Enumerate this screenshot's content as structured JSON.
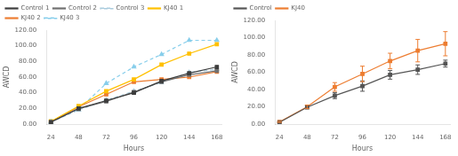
{
  "chart_data": [
    {
      "type": "line",
      "xlabel": "Hours",
      "ylabel": "AWCD",
      "x": [
        24,
        48,
        72,
        96,
        120,
        144,
        168
      ],
      "xlim": [
        20,
        172
      ],
      "xticks": [
        24,
        48,
        72,
        96,
        120,
        144,
        168
      ],
      "ylim": [
        0,
        120
      ],
      "yticks": [
        {
          "value": 0,
          "label": "0.00"
        },
        {
          "value": 20,
          "label": "20.00"
        },
        {
          "value": 40,
          "label": "40.00"
        },
        {
          "value": 60,
          "label": "60.00"
        },
        {
          "value": 80,
          "label": "80.00"
        },
        {
          "value": 100,
          "label": "100.00"
        },
        {
          "value": 120,
          "label": "120.00"
        }
      ],
      "grid": false,
      "legend": "upper left",
      "series": [
        {
          "name": "Control 1",
          "color": "#3d3d3d",
          "marker": "square",
          "line_style": "solid",
          "values": [
            2.5,
            20.0,
            30.0,
            40.0,
            55.0,
            65.0,
            73.0
          ]
        },
        {
          "name": "Control 2",
          "color": "#707070",
          "marker": "square",
          "line_style": "solid",
          "values": [
            2.5,
            19.5,
            29.0,
            41.0,
            54.0,
            63.0,
            68.0
          ]
        },
        {
          "name": "Control 3",
          "color": "#aaccdd",
          "marker": "triangle",
          "line_style": "dashed",
          "values": [
            2.5,
            18.0,
            30.5,
            42.0,
            53.0,
            66.0,
            70.0
          ]
        },
        {
          "name": "KJ40 1",
          "color": "#ffc000",
          "marker": "square",
          "line_style": "solid",
          "values": [
            3.5,
            23.0,
            42.0,
            57.0,
            76.0,
            90.0,
            102.0
          ]
        },
        {
          "name": "KJ40 2",
          "color": "#ed7d31",
          "marker": "square",
          "line_style": "solid",
          "values": [
            3.0,
            22.0,
            38.0,
            54.0,
            57.0,
            60.0,
            67.0
          ]
        },
        {
          "name": "KJ40 3",
          "color": "#87ceeb",
          "marker": "triangle",
          "line_style": "dashed",
          "values": [
            3.0,
            18.5,
            52.0,
            73.0,
            89.0,
            107.0,
            107.0
          ]
        }
      ]
    },
    {
      "type": "line",
      "xlabel": "Hours",
      "ylabel": "AWCD",
      "x": [
        24,
        48,
        72,
        96,
        120,
        144,
        168
      ],
      "xlim": [
        20,
        172
      ],
      "xticks": [
        24,
        48,
        72,
        96,
        120,
        144,
        168
      ],
      "ylim": [
        0,
        120
      ],
      "yticks": [
        {
          "value": 0,
          "label": "0.00"
        },
        {
          "value": 20,
          "label": "20.00"
        },
        {
          "value": 40,
          "label": "40.00"
        },
        {
          "value": 60,
          "label": "60.00"
        },
        {
          "value": 80,
          "label": "80.00"
        },
        {
          "value": 100,
          "label": "100.00"
        },
        {
          "value": 120,
          "label": "120.00"
        }
      ],
      "grid": false,
      "legend": "upper left",
      "series": [
        {
          "name": "Control",
          "color": "#555555",
          "marker": "square",
          "line_style": "solid",
          "values": [
            2.0,
            19.5,
            33.0,
            44.0,
            57.0,
            63.0,
            70.0
          ],
          "errors": [
            0.5,
            2.0,
            3.5,
            6.0,
            5.0,
            5.5,
            4.0
          ]
        },
        {
          "name": "KJ40",
          "color": "#ed7d31",
          "marker": "square",
          "line_style": "solid",
          "values": [
            2.5,
            20.0,
            43.0,
            58.0,
            73.0,
            85.0,
            93.0
          ],
          "errors": [
            0.5,
            2.0,
            5.0,
            9.0,
            9.0,
            13.0,
            14.0
          ]
        }
      ]
    }
  ]
}
